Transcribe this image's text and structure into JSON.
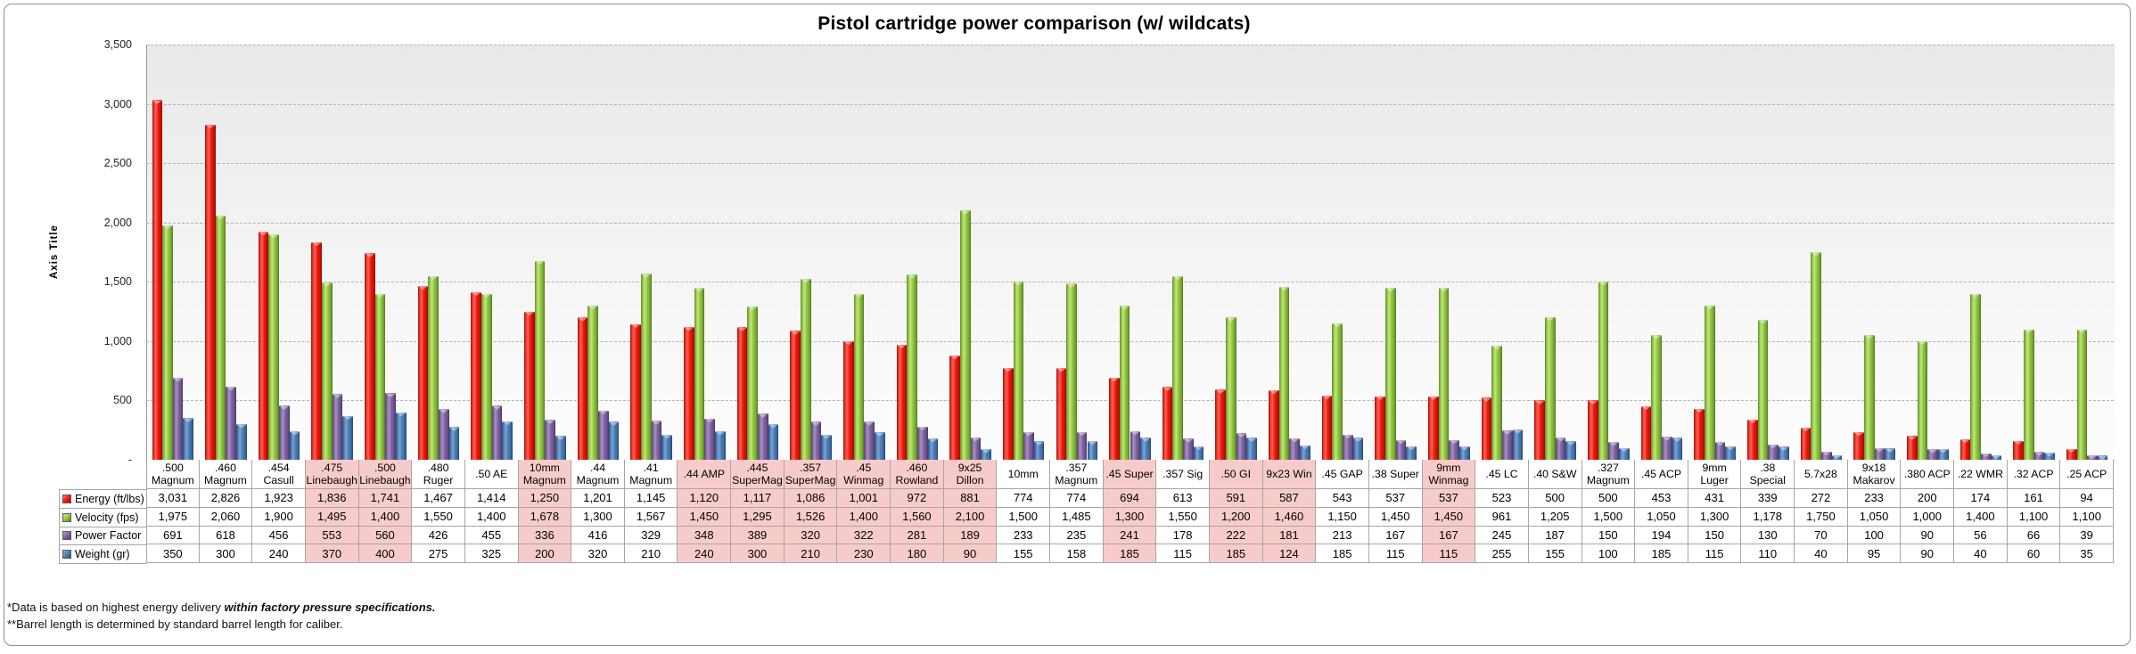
{
  "title": "Pistol cartridge power comparison (w/ wildcats)",
  "footnotes": {
    "line1_prefix": "*Data is based on highest energy delivery ",
    "line1_emphasis": "within factory pressure specifications.",
    "line2": "**Barrel length is determined by standard barrel length for caliber."
  },
  "colors": {
    "energy": "#ea170b",
    "velocity": "#8cc63e",
    "power_factor": "#7d619f",
    "weight": "#4a7cb5",
    "wildcat_highlight": "#f8cbcb",
    "table_border": "#a6a6a6"
  },
  "chart_data": {
    "type": "bar",
    "title": "Pistol cartridge power comparison (w/ wildcats)",
    "xlabel": "",
    "ylabel": "Axis Title",
    "ylim": [
      0,
      3500
    ],
    "y_tick_step": 500,
    "y_tick_labels": [
      "-",
      "500",
      "1,000",
      "1,500",
      "2,000",
      "2,500",
      "3,000",
      "3,500"
    ],
    "grid": "horizontal dashed",
    "legend_position": "data table row labels below chart",
    "categories": [
      ".500 Magnum",
      ".460 Magnum",
      ".454 Casull",
      ".475 Linebaugh",
      ".500 Linebaugh",
      ".480 Ruger",
      ".50 AE",
      "10mm Magnum",
      ".44 Magnum",
      ".41 Magnum",
      ".44 AMP",
      ".445 SuperMag",
      ".357 SuperMag",
      ".45 Winmag",
      ".460 Rowland",
      "9x25 Dillon",
      "10mm",
      ".357 Magnum",
      ".45 Super",
      ".357 Sig",
      ".50 GI",
      "9x23 Win",
      ".45 GAP",
      ".38 Super",
      "9mm Winmag",
      ".45 LC",
      ".40 S&W",
      ".327 Magnum",
      ".45 ACP",
      "9mm Luger",
      ".38 Special",
      "5.7x28",
      "9x18 Makarov",
      ".380 ACP",
      ".22 WMR",
      ".32 ACP",
      ".25 ACP"
    ],
    "wildcat_highlight_indices": [
      3,
      4,
      7,
      10,
      11,
      12,
      13,
      14,
      15,
      18,
      20,
      21,
      24
    ],
    "series": [
      {
        "name": "Energy (ft/lbs)",
        "color": "#ea170b",
        "values": [
          3031,
          2826,
          1923,
          1836,
          1741,
          1467,
          1414,
          1250,
          1201,
          1145,
          1120,
          1117,
          1086,
          1001,
          972,
          881,
          774,
          774,
          694,
          613,
          591,
          587,
          543,
          537,
          537,
          523,
          500,
          500,
          453,
          431,
          339,
          272,
          233,
          200,
          174,
          161,
          94
        ]
      },
      {
        "name": "Velocity (fps)",
        "color": "#8cc63e",
        "values": [
          1975,
          2060,
          1900,
          1495,
          1400,
          1550,
          1400,
          1678,
          1300,
          1567,
          1450,
          1295,
          1526,
          1400,
          1560,
          2100,
          1500,
          1485,
          1300,
          1550,
          1200,
          1460,
          1150,
          1450,
          1450,
          961,
          1205,
          1500,
          1050,
          1300,
          1178,
          1750,
          1050,
          1000,
          1400,
          1100,
          1100
        ]
      },
      {
        "name": "Power Factor",
        "color": "#7d619f",
        "values": [
          691,
          618,
          456,
          553,
          560,
          426,
          455,
          336,
          416,
          329,
          348,
          389,
          320,
          322,
          281,
          189,
          233,
          235,
          241,
          178,
          222,
          181,
          213,
          167,
          167,
          245,
          187,
          150,
          194,
          150,
          130,
          70,
          100,
          90,
          56,
          66,
          39
        ]
      },
      {
        "name": "Weight (gr)",
        "color": "#4a7cb5",
        "values": [
          350,
          300,
          240,
          370,
          400,
          275,
          325,
          200,
          320,
          210,
          240,
          300,
          210,
          230,
          180,
          90,
          155,
          158,
          185,
          115,
          185,
          124,
          185,
          115,
          115,
          255,
          155,
          100,
          185,
          115,
          110,
          40,
          95,
          90,
          40,
          60,
          35
        ]
      }
    ]
  }
}
